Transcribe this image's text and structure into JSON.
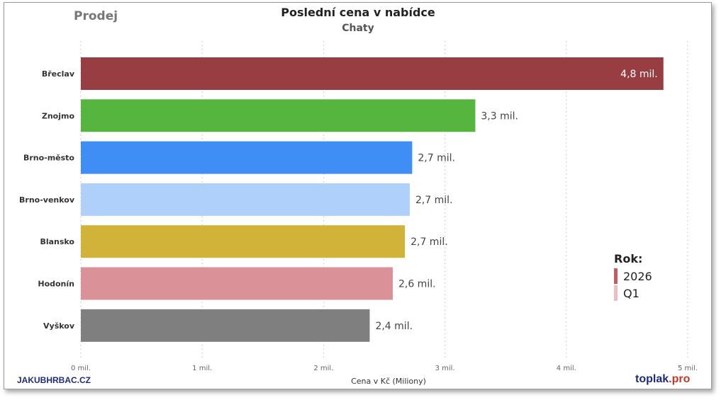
{
  "header": {
    "corner_label": "Prodej"
  },
  "chart_data": {
    "type": "bar",
    "orientation": "horizontal",
    "title": "Poslední cena v nabídce",
    "subtitle": "Chaty",
    "xlabel": "Cena v Kč (Miliony)",
    "ylabel": "",
    "xlim": [
      0,
      5
    ],
    "xticks": [
      {
        "value": 0,
        "label": "0 mil."
      },
      {
        "value": 1,
        "label": "1 mil."
      },
      {
        "value": 2,
        "label": "2 mil."
      },
      {
        "value": 3,
        "label": "3 mil."
      },
      {
        "value": 4,
        "label": "4 mil."
      },
      {
        "value": 5,
        "label": "5 mil."
      }
    ],
    "grid": "vertical-dotted",
    "categories": [
      "Břeclav",
      "Znojmo",
      "Brno-město",
      "Brno-venkov",
      "Blansko",
      "Hodonín",
      "Vyškov"
    ],
    "values": [
      4.8,
      3.25,
      2.73,
      2.71,
      2.67,
      2.57,
      2.38
    ],
    "value_labels": [
      "4,8 mil.",
      "3,3 mil.",
      "2,7 mil.",
      "2,7 mil.",
      "2,7 mil.",
      "2,6 mil.",
      "2,4 mil."
    ],
    "colors": [
      "#983d42",
      "#55b53e",
      "#3f8ef5",
      "#aed0fb",
      "#d2b33a",
      "#da9197",
      "#7f7f7f"
    ],
    "legend": {
      "title": "Rok:",
      "placement": "bottom-right",
      "items": [
        {
          "label": "2026",
          "color": "#c65a60"
        },
        {
          "label": "Q1",
          "color": "#f1bcc0"
        }
      ]
    }
  },
  "footer": {
    "source_left": "JAKUBHRBAC.CZ",
    "source_right_main": "toplak",
    "source_right_accent": ".pro"
  }
}
